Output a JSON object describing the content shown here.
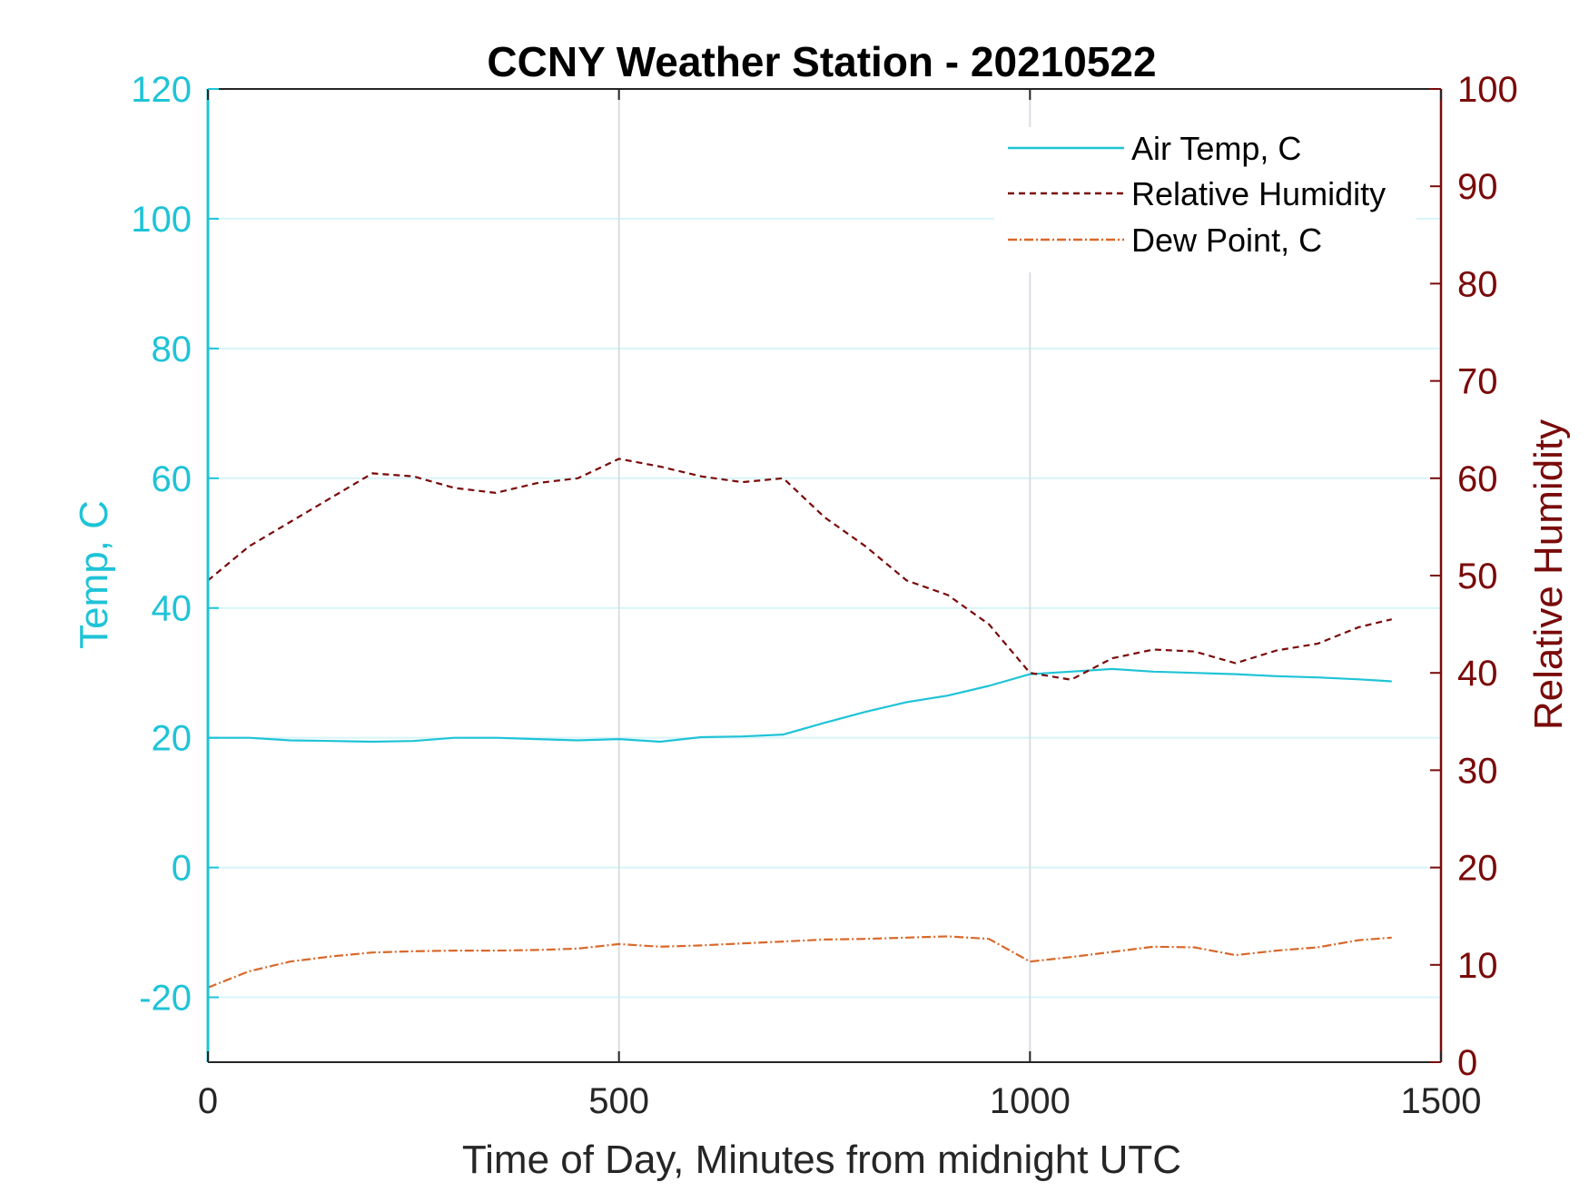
{
  "chart_data": {
    "type": "line",
    "title": "CCNY Weather Station - 20210522",
    "xlabel": "Time of Day, Minutes from midnight UTC",
    "ylabel_left": "Temp, C",
    "ylabel_right": "Relative Humidity",
    "xlim": [
      0,
      1500
    ],
    "ylim_left": [
      -30,
      120
    ],
    "ylim_right": [
      0,
      100
    ],
    "x_ticks": [
      "0",
      "500",
      "1000",
      "1500"
    ],
    "y_ticks_left": [
      "120",
      "100",
      "80",
      "60",
      "40",
      "20",
      "0",
      "-20"
    ],
    "y_ticks_right": [
      "100",
      "90",
      "80",
      "70",
      "60",
      "50",
      "40",
      "30",
      "20",
      "10",
      "0"
    ],
    "grid": "on",
    "legend_position": "top-right",
    "colors": {
      "air_temp": "#1fc3d7",
      "humidity": "#7a0a0a",
      "dew_point": "#d9682a",
      "left_axis": "#1fc3d7",
      "right_axis": "#7a0a0a"
    },
    "series": [
      {
        "name": "Air Temp, C",
        "axis": "left",
        "style": "solid",
        "x": [
          0,
          50,
          100,
          150,
          200,
          250,
          300,
          350,
          400,
          450,
          500,
          550,
          600,
          650,
          700,
          750,
          800,
          850,
          900,
          950,
          1000,
          1050,
          1100,
          1150,
          1200,
          1250,
          1300,
          1350,
          1400,
          1440
        ],
        "y": [
          20,
          20,
          19.6,
          19.5,
          19.4,
          19.5,
          20,
          20,
          19.8,
          19.6,
          19.8,
          19.4,
          20.1,
          20.2,
          20.5,
          22.3,
          24,
          25.5,
          26.5,
          28,
          29.8,
          30.2,
          30.6,
          30.2,
          30,
          29.8,
          29.5,
          29.3,
          29,
          28.7
        ]
      },
      {
        "name": "Relative Humidity",
        "axis": "right",
        "style": "dashed",
        "x": [
          0,
          50,
          100,
          150,
          200,
          250,
          300,
          350,
          400,
          450,
          500,
          550,
          600,
          650,
          700,
          750,
          800,
          850,
          900,
          950,
          1000,
          1050,
          1100,
          1150,
          1200,
          1250,
          1300,
          1350,
          1400,
          1440
        ],
        "y": [
          49.5,
          53,
          55.5,
          58,
          60.5,
          60.2,
          59,
          58.5,
          59.5,
          60,
          62,
          61.2,
          60.2,
          59.6,
          60,
          56,
          53,
          49.5,
          48,
          45,
          40,
          39.3,
          41.5,
          42.4,
          42.2,
          41,
          42.3,
          43,
          44.7,
          45.5
        ]
      },
      {
        "name": "Dew Point, C",
        "axis": "left",
        "style": "dashdot",
        "x": [
          0,
          50,
          100,
          150,
          200,
          250,
          300,
          350,
          400,
          450,
          500,
          550,
          600,
          650,
          700,
          750,
          800,
          850,
          900,
          950,
          1000,
          1050,
          1100,
          1150,
          1200,
          1250,
          1300,
          1350,
          1400,
          1440
        ],
        "y": [
          -18.5,
          -16,
          -14.5,
          -13.7,
          -13.1,
          -12.9,
          -12.8,
          -12.8,
          -12.7,
          -12.5,
          -11.8,
          -12.2,
          -12,
          -11.7,
          -11.4,
          -11.1,
          -11.0,
          -10.8,
          -10.6,
          -11,
          -14.5,
          -13.8,
          -13,
          -12.2,
          -12.3,
          -13.5,
          -12.8,
          -12.3,
          -11.2,
          -10.8
        ]
      }
    ]
  }
}
